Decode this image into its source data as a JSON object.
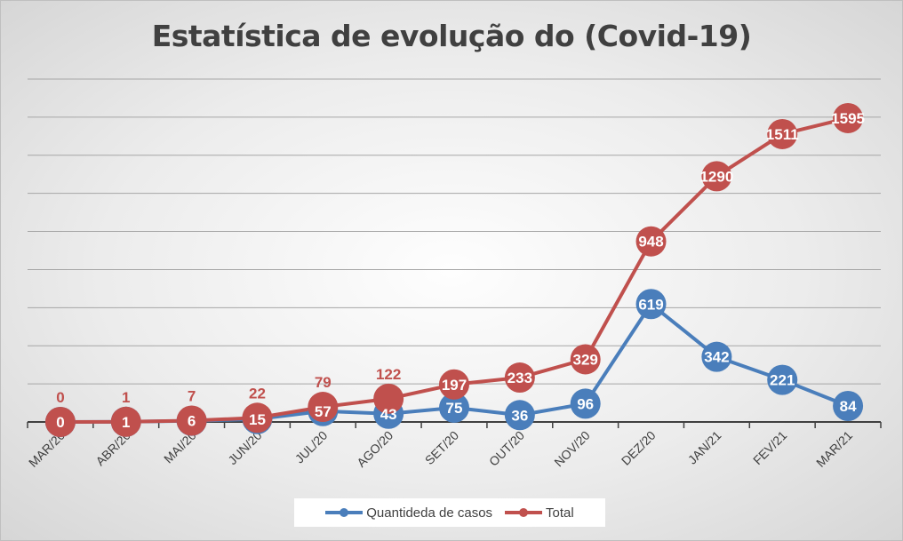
{
  "chart_data": {
    "type": "line",
    "title": "Estatística de evolução do (Covid-19)",
    "categories": [
      "MAR/20",
      "ABR/20",
      "MAI/20",
      "JUN/20",
      "JUL/20",
      "AGO/20",
      "SET/20",
      "OUT/20",
      "NOV/20",
      "DEZ/20",
      "JAN/21",
      "FEV/21",
      "MAR/21"
    ],
    "series": [
      {
        "name": "Quantideda de casos",
        "color": "#4a7ebb",
        "values": [
          0,
          1,
          6,
          15,
          57,
          43,
          75,
          36,
          96,
          619,
          342,
          221,
          84
        ]
      },
      {
        "name": "Total",
        "color": "#c0504d",
        "values": [
          0,
          1,
          7,
          22,
          79,
          122,
          197,
          233,
          329,
          948,
          1290,
          1511,
          1595
        ]
      }
    ],
    "ylim": [
      0,
      1800
    ],
    "ytick_step": 200,
    "grid": true,
    "legend": "bottom",
    "data_labels": true
  }
}
